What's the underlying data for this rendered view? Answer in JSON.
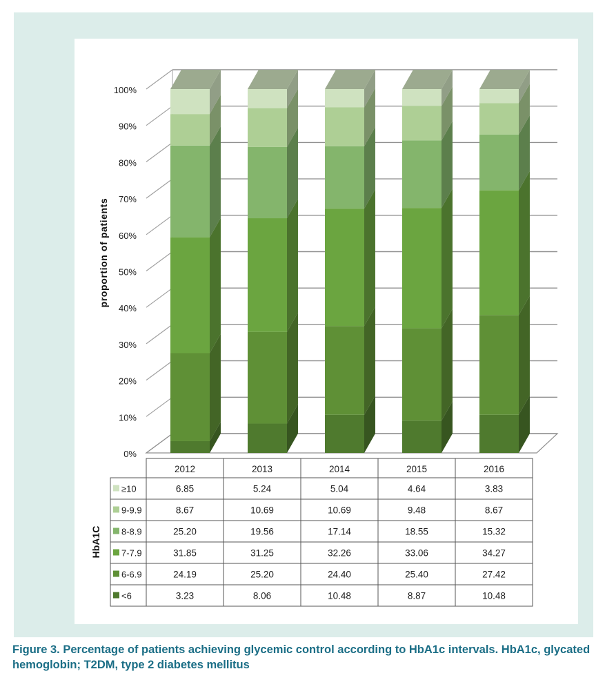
{
  "caption": "Figure 3. Percentage of patients achieving glycemic control according to HbA1c intervals. HbA1c, glycated hemoglobin; T2DM, type 2 diabetes mellitus",
  "chart_data": {
    "type": "bar",
    "stacked": true,
    "three_d": true,
    "categories": [
      "2012",
      "2013",
      "2014",
      "2015",
      "2016"
    ],
    "ylabel": "proportion of patients",
    "ylim": [
      0,
      100
    ],
    "yticks": [
      "0%",
      "10%",
      "20%",
      "30%",
      "40%",
      "50%",
      "60%",
      "70%",
      "80%",
      "90%",
      "100%"
    ],
    "grid": true,
    "legend_title": "HbA1C",
    "legend_placement": "data table below chart",
    "series": [
      {
        "name": "<6",
        "color": "#4f7a2e",
        "values": [
          3.23,
          8.06,
          10.48,
          8.87,
          10.48
        ]
      },
      {
        "name": "6-6.9",
        "color": "#5f9036",
        "values": [
          24.19,
          25.2,
          24.4,
          25.4,
          27.42
        ]
      },
      {
        "name": "7-7.9",
        "color": "#6ba540",
        "values": [
          31.85,
          31.25,
          32.26,
          33.06,
          34.27
        ]
      },
      {
        "name": "8-8.9",
        "color": "#84b56c",
        "values": [
          25.2,
          19.56,
          17.14,
          18.55,
          15.32
        ]
      },
      {
        "name": "9-9.9",
        "color": "#aecf95",
        "values": [
          8.67,
          10.69,
          10.69,
          9.48,
          8.67
        ]
      },
      {
        "name": "≥10",
        "color": "#cfe2c0",
        "values": [
          6.85,
          5.24,
          5.04,
          4.64,
          3.83
        ]
      }
    ],
    "table_values": [
      {
        "name": "≥10",
        "values": [
          "6.85",
          "5.24",
          "5.04",
          "4.64",
          "3.83"
        ]
      },
      {
        "name": "9-9.9",
        "values": [
          "8.67",
          "10.69",
          "10.69",
          "9.48",
          "8.67"
        ]
      },
      {
        "name": "8-8.9",
        "values": [
          "25.20",
          "19.56",
          "17.14",
          "18.55",
          "15.32"
        ]
      },
      {
        "name": "7-7.9",
        "values": [
          "31.85",
          "31.25",
          "32.26",
          "33.06",
          "34.27"
        ]
      },
      {
        "name": "6-6.9",
        "values": [
          "24.19",
          "25.20",
          "24.40",
          "25.40",
          "27.42"
        ]
      },
      {
        "name": "<6",
        "values": [
          "3.23",
          "8.06",
          "10.48",
          "8.87",
          "10.48"
        ]
      }
    ]
  }
}
